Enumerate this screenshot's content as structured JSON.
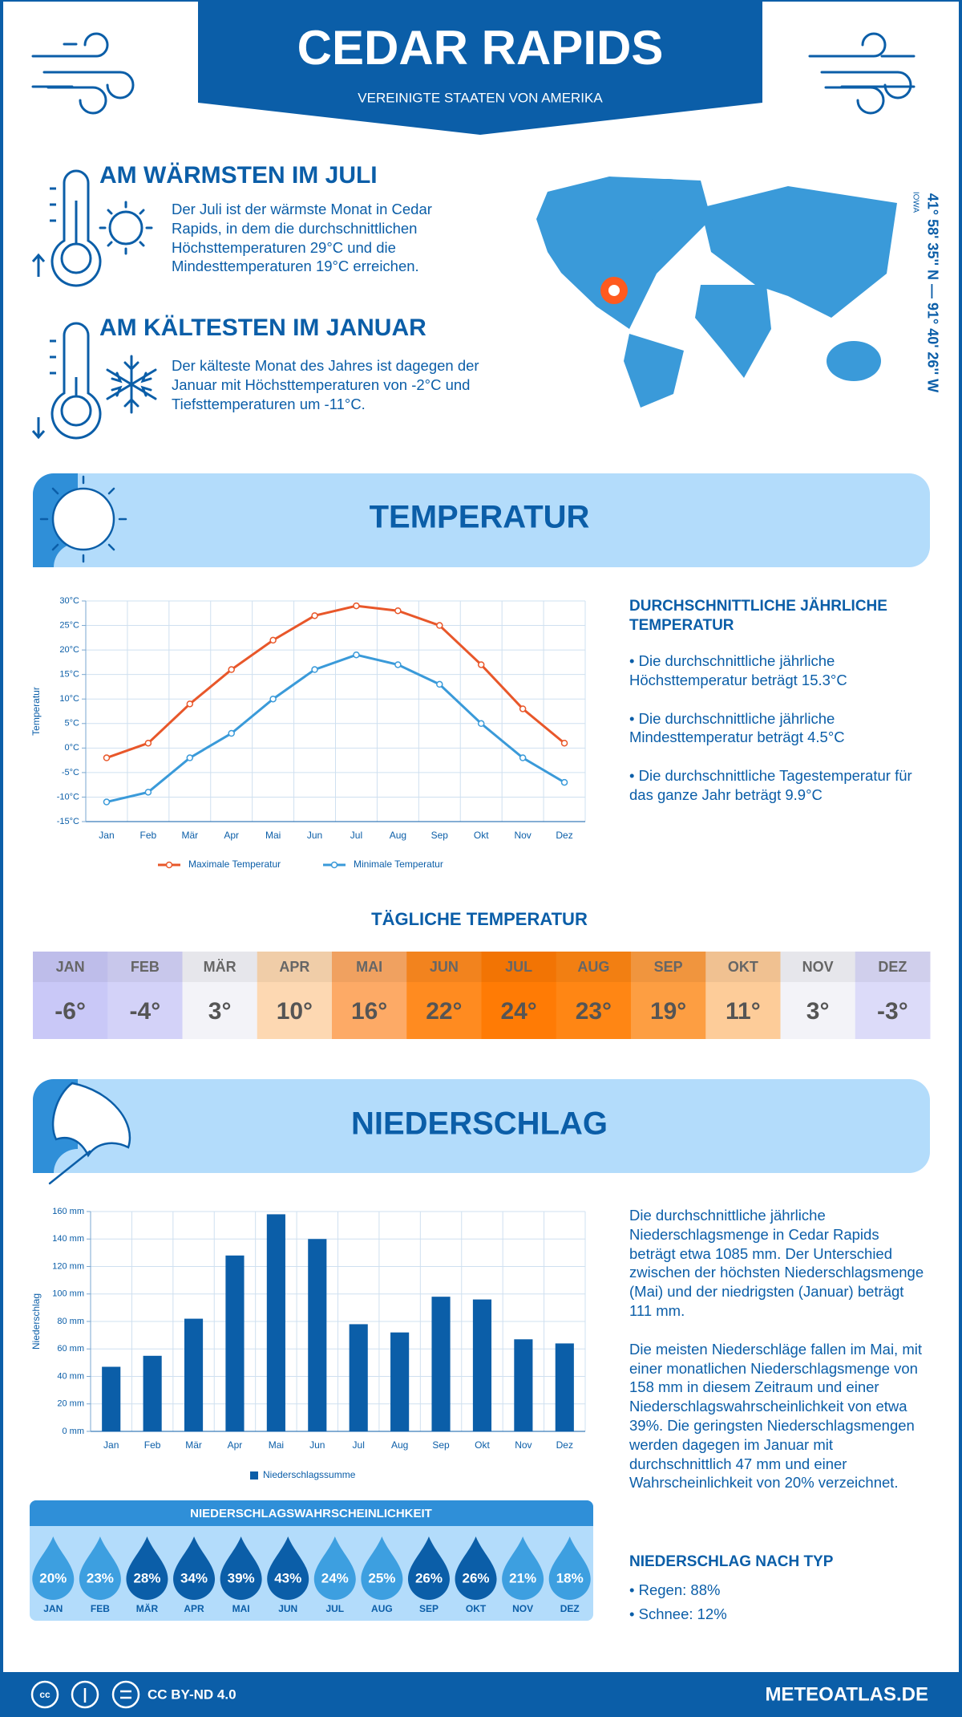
{
  "header": {
    "title": "CEDAR RAPIDS",
    "subtitle": "VEREINIGTE STAATEN VON AMERIKA"
  },
  "facts": [
    {
      "heading": "AM WÄRMSTEN IM JULI",
      "text": "Der Juli ist der wärmste Monat in Cedar Rapids, in dem die durchschnittlichen Höchsttemperaturen 29°C und die Mindesttemperaturen 19°C erreichen."
    },
    {
      "heading": "AM KÄLTESTEN IM JANUAR",
      "text": "Der kälteste Monat des Jahres ist dagegen der Januar mit Höchsttemperaturen von -2°C und Tiefsttemperaturen um -11°C."
    }
  ],
  "location": {
    "coordinates": "41° 58' 35'' N — 91° 40' 26'' W",
    "region": "IOWA"
  },
  "temperature_section": {
    "title": "TEMPERATUR",
    "summary_title": "DURCHSCHNITTLICHE JÄHRLICHE TEMPERATUR",
    "bullets": [
      "• Die durchschnittliche jährliche Höchsttemperatur beträgt 15.3°C",
      "• Die durchschnittliche jährliche Mindesttemperatur beträgt 4.5°C",
      "• Die durchschnittliche Tagestemperatur für das ganze Jahr beträgt 9.9°C"
    ]
  },
  "chart_data": [
    {
      "type": "line",
      "y_label": "Temperatur",
      "categories": [
        "Jan",
        "Feb",
        "Mär",
        "Apr",
        "Mai",
        "Jun",
        "Jul",
        "Aug",
        "Sep",
        "Okt",
        "Nov",
        "Dez"
      ],
      "series": [
        {
          "name": "Maximale Temperatur",
          "color": "#e8572a",
          "values": [
            -2,
            1,
            9,
            16,
            22,
            27,
            29,
            28,
            25,
            17,
            8,
            1
          ]
        },
        {
          "name": "Minimale Temperatur",
          "color": "#3a9ad9",
          "values": [
            -11,
            -9,
            -2,
            3,
            10,
            16,
            19,
            17,
            13,
            5,
            -2,
            -7
          ]
        }
      ],
      "ylim": [
        -15,
        30
      ],
      "yticks": [
        {
          "value": -15,
          "label": "-15°C"
        },
        {
          "value": -10,
          "label": "-10°C"
        },
        {
          "value": -5,
          "label": "-5°C"
        },
        {
          "value": 0,
          "label": "0°C"
        },
        {
          "value": 5,
          "label": "5°C"
        },
        {
          "value": 10,
          "label": "10°C"
        },
        {
          "value": 15,
          "label": "15°C"
        },
        {
          "value": 20,
          "label": "20°C"
        },
        {
          "value": 25,
          "label": "25°C"
        },
        {
          "value": 30,
          "label": "30°C"
        }
      ],
      "grid": true,
      "legend": "bottom"
    },
    {
      "type": "bar",
      "y_label": "Niederschlag",
      "categories": [
        "Jan",
        "Feb",
        "Mär",
        "Apr",
        "Mai",
        "Jun",
        "Jul",
        "Aug",
        "Sep",
        "Okt",
        "Nov",
        "Dez"
      ],
      "series": [
        {
          "name": "Niederschlagssumme",
          "color": "#0b5ea8",
          "values": [
            47,
            55,
            82,
            128,
            158,
            140,
            78,
            72,
            98,
            96,
            67,
            64
          ]
        }
      ],
      "ylim": [
        0,
        160
      ],
      "yticks": [
        {
          "value": 0,
          "label": "0 mm"
        },
        {
          "value": 20,
          "label": "20 mm"
        },
        {
          "value": 40,
          "label": "40 mm"
        },
        {
          "value": 60,
          "label": "60 mm"
        },
        {
          "value": 80,
          "label": "80 mm"
        },
        {
          "value": 100,
          "label": "100 mm"
        },
        {
          "value": 120,
          "label": "120 mm"
        },
        {
          "value": 140,
          "label": "140 mm"
        },
        {
          "value": 160,
          "label": "160 mm"
        }
      ],
      "grid": true,
      "legend": "bottom"
    }
  ],
  "daily_temperature": {
    "title": "TÄGLICHE TEMPERATUR",
    "months": [
      {
        "month": "JAN",
        "temp": "-6°",
        "color": "#c9c8f7"
      },
      {
        "month": "FEB",
        "temp": "-4°",
        "color": "#d3d2f8"
      },
      {
        "month": "MÄR",
        "temp": "3°",
        "color": "#f3f3f8"
      },
      {
        "month": "APR",
        "temp": "10°",
        "color": "#fdd8b2"
      },
      {
        "month": "MAI",
        "temp": "16°",
        "color": "#fdaa66"
      },
      {
        "month": "JUN",
        "temp": "22°",
        "color": "#ff8b20"
      },
      {
        "month": "JUL",
        "temp": "24°",
        "color": "#ff7b05"
      },
      {
        "month": "AUG",
        "temp": "23°",
        "color": "#ff8614"
      },
      {
        "month": "SEP",
        "temp": "19°",
        "color": "#fd9e42"
      },
      {
        "month": "OKT",
        "temp": "11°",
        "color": "#fdcc99"
      },
      {
        "month": "NOV",
        "temp": "3°",
        "color": "#f3f3f8"
      },
      {
        "month": "DEZ",
        "temp": "-3°",
        "color": "#dcdbf9"
      }
    ]
  },
  "precipitation_section": {
    "title": "NIEDERSCHLAG",
    "paragraphs": [
      "Die durchschnittliche jährliche Niederschlagsmenge in Cedar Rapids beträgt etwa 1085 mm. Der Unterschied zwischen der höchsten Niederschlagsmenge (Mai) und der niedrigsten (Januar) beträgt 111 mm.",
      "Die meisten Niederschläge fallen im Mai, mit einer monatlichen Niederschlagsmenge von 158 mm in diesem Zeitraum und einer Niederschlagswahrscheinlichkeit von etwa 39%. Die geringsten Niederschlagsmengen werden dagegen im Januar mit durchschnittlich 47 mm und einer Wahrscheinlichkeit von 20% verzeichnet."
    ],
    "type_title": "NIEDERSCHLAG NACH TYP",
    "types": [
      "• Regen: 88%",
      "• Schnee: 12%"
    ]
  },
  "probability": {
    "title": "NIEDERSCHLAGSWAHRSCHEINLICHKEIT",
    "months": [
      {
        "month": "JAN",
        "value": "20%",
        "color": "#3d9fe0"
      },
      {
        "month": "FEB",
        "value": "23%",
        "color": "#3d9fe0"
      },
      {
        "month": "MÄR",
        "value": "28%",
        "color": "#0b5ea8"
      },
      {
        "month": "APR",
        "value": "34%",
        "color": "#0b5ea8"
      },
      {
        "month": "MAI",
        "value": "39%",
        "color": "#0b5ea8"
      },
      {
        "month": "JUN",
        "value": "43%",
        "color": "#0b5ea8"
      },
      {
        "month": "JUL",
        "value": "24%",
        "color": "#3d9fe0"
      },
      {
        "month": "AUG",
        "value": "25%",
        "color": "#3d9fe0"
      },
      {
        "month": "SEP",
        "value": "26%",
        "color": "#0b5ea8"
      },
      {
        "month": "OKT",
        "value": "26%",
        "color": "#0b5ea8"
      },
      {
        "month": "NOV",
        "value": "21%",
        "color": "#3d9fe0"
      },
      {
        "month": "DEZ",
        "value": "18%",
        "color": "#3d9fe0"
      }
    ]
  },
  "footer": {
    "license": "CC BY-ND 4.0",
    "site": "METEOATLAS.DE"
  }
}
